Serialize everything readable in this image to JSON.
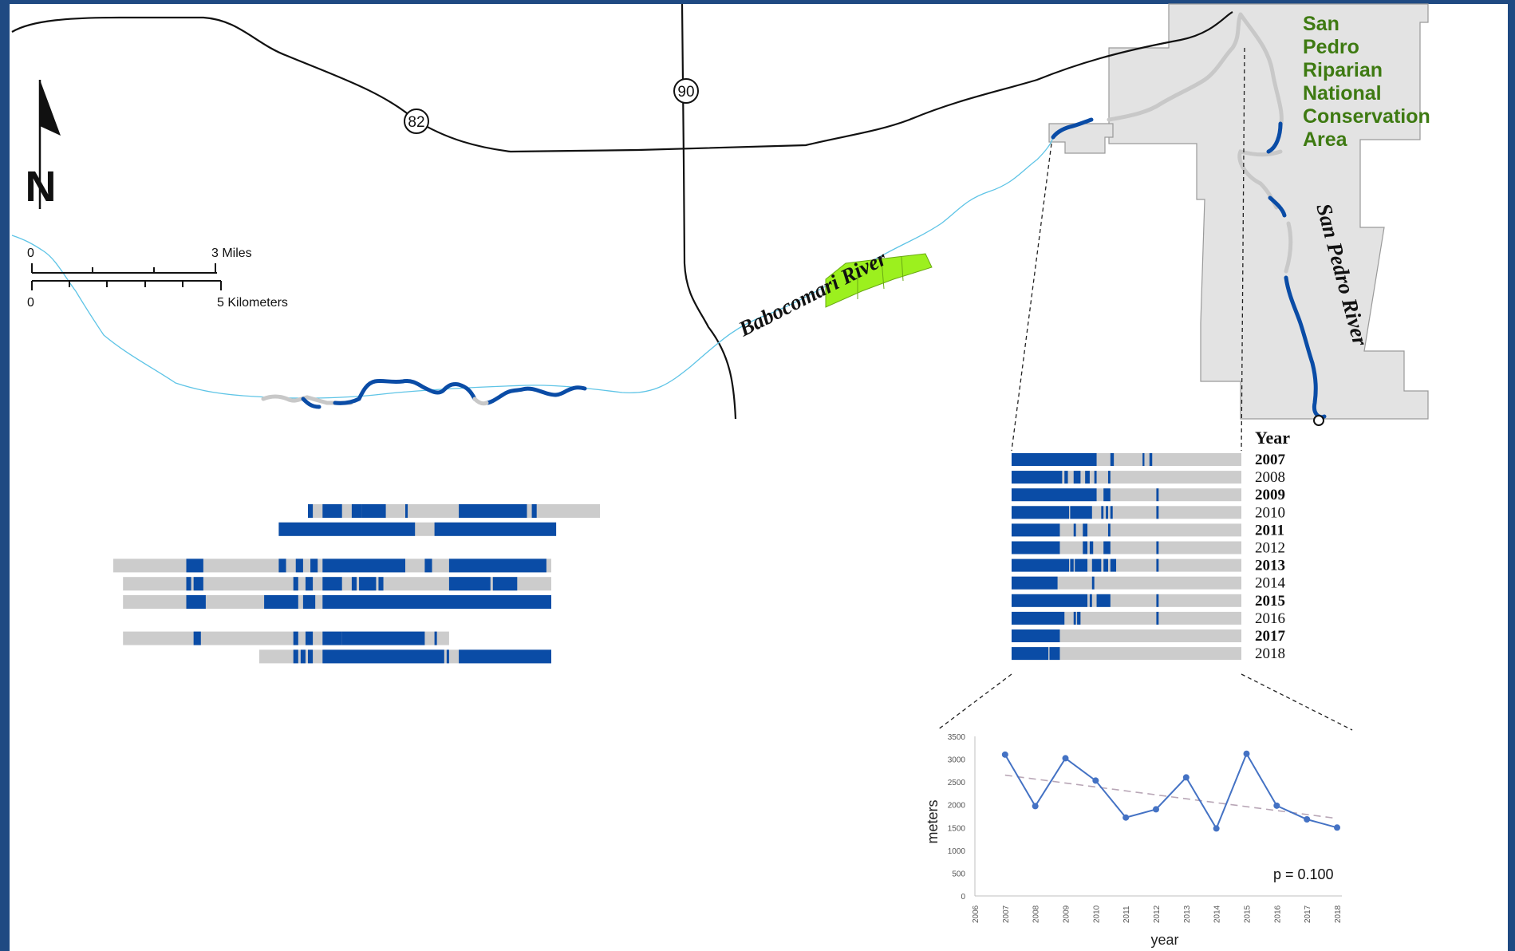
{
  "colors": {
    "frame": "#1f4a82",
    "background": "#ffffff",
    "wet": "#0a4ca6",
    "dry": "#cccccc",
    "stream_line": "#5ec4e6",
    "conservation_area": "#e3e3e3",
    "highlight_parcel": "#9cf01e",
    "area_label": "#3e7a12",
    "chart_line": "#4472c4",
    "trend_line": "#b8a6b6"
  },
  "north_arrow": {
    "label": "N"
  },
  "scale_bar": {
    "miles_start": "0",
    "miles_end": "3 Miles",
    "km_start": "0",
    "km_end": "5 Kilometers"
  },
  "highways": {
    "route_82": "82",
    "route_90": "90"
  },
  "labels": {
    "babocomari": "Babocomari River",
    "san_pedro": "San Pedro River",
    "area_lines": [
      "San",
      "Pedro",
      "Riparian",
      "National",
      "Conservation",
      "Area"
    ]
  },
  "year_panel": {
    "header": "Year",
    "rows": [
      {
        "year": "2007",
        "bold": true,
        "wet": [
          [
            0,
            0.37
          ],
          [
            0.43,
            0.445
          ],
          [
            0.57,
            0.578
          ],
          [
            0.6,
            0.612
          ]
        ]
      },
      {
        "year": "2008",
        "bold": false,
        "wet": [
          [
            0,
            0.22
          ],
          [
            0.23,
            0.245
          ],
          [
            0.27,
            0.3
          ],
          [
            0.32,
            0.34
          ],
          [
            0.36,
            0.37
          ],
          [
            0.42,
            0.43
          ]
        ]
      },
      {
        "year": "2009",
        "bold": true,
        "wet": [
          [
            0,
            0.37
          ],
          [
            0.4,
            0.43
          ],
          [
            0.63,
            0.64
          ]
        ]
      },
      {
        "year": "2010",
        "bold": false,
        "wet": [
          [
            0,
            0.25
          ],
          [
            0.255,
            0.35
          ],
          [
            0.39,
            0.4
          ],
          [
            0.41,
            0.42
          ],
          [
            0.43,
            0.44
          ],
          [
            0.63,
            0.64
          ]
        ]
      },
      {
        "year": "2011",
        "bold": true,
        "wet": [
          [
            0,
            0.21
          ],
          [
            0.27,
            0.28
          ],
          [
            0.31,
            0.33
          ],
          [
            0.42,
            0.43
          ]
        ]
      },
      {
        "year": "2012",
        "bold": false,
        "wet": [
          [
            0,
            0.21
          ],
          [
            0.31,
            0.33
          ],
          [
            0.34,
            0.355
          ],
          [
            0.4,
            0.43
          ],
          [
            0.63,
            0.64
          ]
        ]
      },
      {
        "year": "2013",
        "bold": true,
        "wet": [
          [
            0,
            0.25
          ],
          [
            0.255,
            0.27
          ],
          [
            0.275,
            0.33
          ],
          [
            0.35,
            0.39
          ],
          [
            0.4,
            0.42
          ],
          [
            0.43,
            0.455
          ],
          [
            0.63,
            0.64
          ]
        ]
      },
      {
        "year": "2014",
        "bold": false,
        "wet": [
          [
            0,
            0.2
          ],
          [
            0.35,
            0.36
          ]
        ]
      },
      {
        "year": "2015",
        "bold": true,
        "wet": [
          [
            0,
            0.33
          ],
          [
            0.34,
            0.35
          ],
          [
            0.37,
            0.43
          ],
          [
            0.63,
            0.64
          ]
        ]
      },
      {
        "year": "2016",
        "bold": false,
        "wet": [
          [
            0,
            0.23
          ],
          [
            0.27,
            0.28
          ],
          [
            0.285,
            0.3
          ],
          [
            0.63,
            0.64
          ]
        ]
      },
      {
        "year": "2017",
        "bold": true,
        "wet": [
          [
            0,
            0.21
          ]
        ]
      },
      {
        "year": "2018",
        "bold": false,
        "wet": [
          [
            0,
            0.16
          ],
          [
            0.165,
            0.21
          ]
        ]
      }
    ]
  },
  "babocomari_bars": {
    "rows": [
      {
        "dry": [
          0.4,
          1.0
        ],
        "wet": [
          [
            0.4,
            0.41
          ],
          [
            0.43,
            0.47
          ],
          [
            0.49,
            0.51
          ],
          [
            0.51,
            0.56
          ],
          [
            0.6,
            0.605
          ],
          [
            0.71,
            0.85
          ],
          [
            0.86,
            0.87
          ]
        ]
      },
      {
        "dry": [
          0.34,
          0.91
        ],
        "wet": [
          [
            0.34,
            0.62
          ],
          [
            0.66,
            0.91
          ]
        ]
      },
      null,
      {
        "dry": [
          0.0,
          0.9
        ],
        "wet": [
          [
            0.15,
            0.185
          ],
          [
            0.34,
            0.355
          ],
          [
            0.375,
            0.39
          ],
          [
            0.405,
            0.42
          ],
          [
            0.43,
            0.5
          ],
          [
            0.5,
            0.6
          ],
          [
            0.64,
            0.655
          ],
          [
            0.69,
            0.89
          ]
        ]
      },
      {
        "dry": [
          0.02,
          0.9
        ],
        "wet": [
          [
            0.15,
            0.16
          ],
          [
            0.165,
            0.185
          ],
          [
            0.37,
            0.38
          ],
          [
            0.395,
            0.41
          ],
          [
            0.43,
            0.47
          ],
          [
            0.49,
            0.5
          ],
          [
            0.505,
            0.54
          ],
          [
            0.545,
            0.555
          ],
          [
            0.69,
            0.775
          ],
          [
            0.78,
            0.83
          ]
        ]
      },
      {
        "dry": [
          0.02,
          0.9
        ],
        "wet": [
          [
            0.15,
            0.19
          ],
          [
            0.31,
            0.38
          ],
          [
            0.39,
            0.415
          ],
          [
            0.43,
            0.9
          ]
        ]
      },
      null,
      {
        "dry": [
          0.02,
          0.69
        ],
        "wet": [
          [
            0.165,
            0.18
          ],
          [
            0.37,
            0.38
          ],
          [
            0.395,
            0.41
          ],
          [
            0.43,
            0.47
          ],
          [
            0.47,
            0.64
          ],
          [
            0.66,
            0.665
          ]
        ]
      },
      {
        "dry": [
          0.3,
          0.9
        ],
        "wet": [
          [
            0.37,
            0.38
          ],
          [
            0.385,
            0.395
          ],
          [
            0.4,
            0.41
          ],
          [
            0.43,
            0.68
          ],
          [
            0.685,
            0.69
          ],
          [
            0.71,
            0.9
          ]
        ]
      }
    ]
  },
  "chart_data": {
    "type": "line",
    "x": [
      2007,
      2008,
      2009,
      2010,
      2011,
      2012,
      2013,
      2014,
      2015,
      2016,
      2017,
      2018
    ],
    "series": [
      {
        "values": [
          3100,
          1970,
          3020,
          2530,
          1720,
          1900,
          2600,
          1480,
          3120,
          1980,
          1680,
          1500
        ]
      }
    ],
    "trend": {
      "start": [
        2007,
        2650
      ],
      "end": [
        2018,
        1700
      ]
    },
    "xlabel": "year",
    "ylabel": "meters",
    "xlim": [
      2006,
      2018
    ],
    "ylim": [
      0,
      3500
    ],
    "yticks": [
      "0",
      "500",
      "1000",
      "1500",
      "2000",
      "2500",
      "3000",
      "3500"
    ],
    "xticks": [
      "2006",
      "2007",
      "2008",
      "2009",
      "2010",
      "2011",
      "2012",
      "2013",
      "2014",
      "2015",
      "2016",
      "2017",
      "2018"
    ],
    "annotation": "p = 0.100",
    "grid": false
  }
}
